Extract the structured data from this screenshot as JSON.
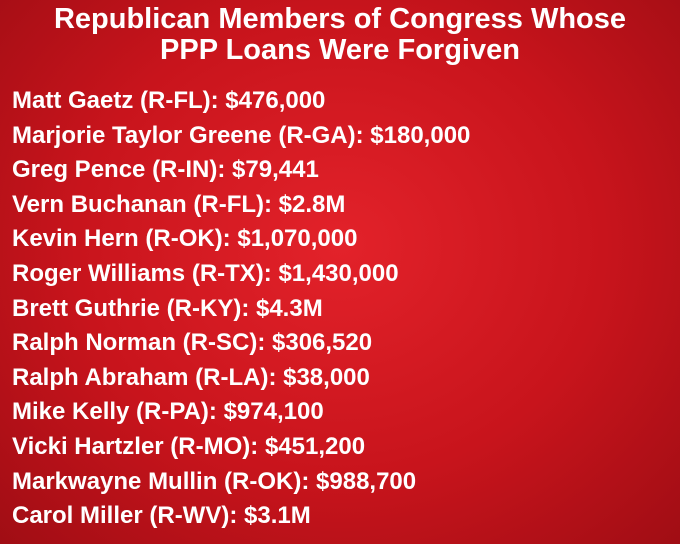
{
  "title": [
    "Republican Members of Congress Whose",
    "PPP Loans Were Forgiven"
  ],
  "items": [
    "Matt Gaetz (R-FL): $476,000",
    "Marjorie Taylor Greene (R-GA): $180,000",
    "Greg Pence (R-IN): $79,441",
    "Vern Buchanan (R-FL): $2.8M",
    "Kevin Hern (R-OK): $1,070,000",
    "Roger Williams (R-TX): $1,430,000",
    "Brett Guthrie (R-KY): $4.3M",
    "Ralph Norman (R-SC): $306,520",
    "Ralph Abraham (R-LA): $38,000",
    "Mike Kelly (R-PA): $974,100",
    "Vicki Hartzler (R-MO): $451,200",
    "Markwayne Mullin (R-OK): $988,700",
    "Carol Miller (R-WV): $3.1M"
  ]
}
